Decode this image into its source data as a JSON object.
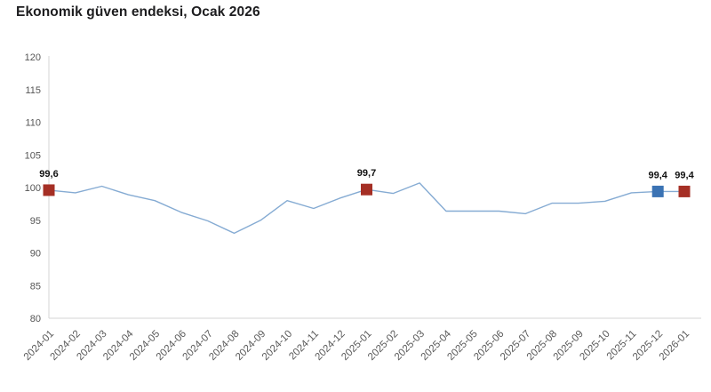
{
  "title": "Ekonomik güven endeksi, Ocak 2026",
  "chart_data": {
    "type": "line",
    "title": "Ekonomik güven endeksi, Ocak 2026",
    "x": [
      "2024-01",
      "2024-02",
      "2024-03",
      "2024-04",
      "2024-05",
      "2024-06",
      "2024-07",
      "2024-08",
      "2024-09",
      "2024-10",
      "2024-11",
      "2024-12",
      "2025-01",
      "2025-02",
      "2025-03",
      "2025-04",
      "2025-05",
      "2025-06",
      "2025-07",
      "2025-08",
      "2025-09",
      "2025-10",
      "2025-11",
      "2025-12",
      "2026-01"
    ],
    "values": [
      99.6,
      99.2,
      100.2,
      98.9,
      98.0,
      96.2,
      94.9,
      93.0,
      95.0,
      98.0,
      96.8,
      98.4,
      99.7,
      99.1,
      100.7,
      96.4,
      96.4,
      96.4,
      96.0,
      97.6,
      97.6,
      97.9,
      99.2,
      99.4,
      99.4
    ],
    "ylim": [
      80,
      120
    ],
    "yticks": [
      80,
      85,
      90,
      95,
      100,
      105,
      110,
      115,
      120
    ],
    "grid": false,
    "legend": "none",
    "xlabel": "",
    "ylabel": "",
    "line_color": "#85abd3",
    "axis_color": "#d6d6d6",
    "markers": [
      {
        "x": "2024-01",
        "value": 99.6,
        "label": "99,6",
        "color": "#a52f25"
      },
      {
        "x": "2025-01",
        "value": 99.7,
        "label": "99,7",
        "color": "#a52f25"
      },
      {
        "x": "2025-12",
        "value": 99.4,
        "label": "99,4",
        "color": "#3b73b4"
      },
      {
        "x": "2026-01",
        "value": 99.4,
        "label": "99,4",
        "color": "#a52f25"
      }
    ]
  }
}
